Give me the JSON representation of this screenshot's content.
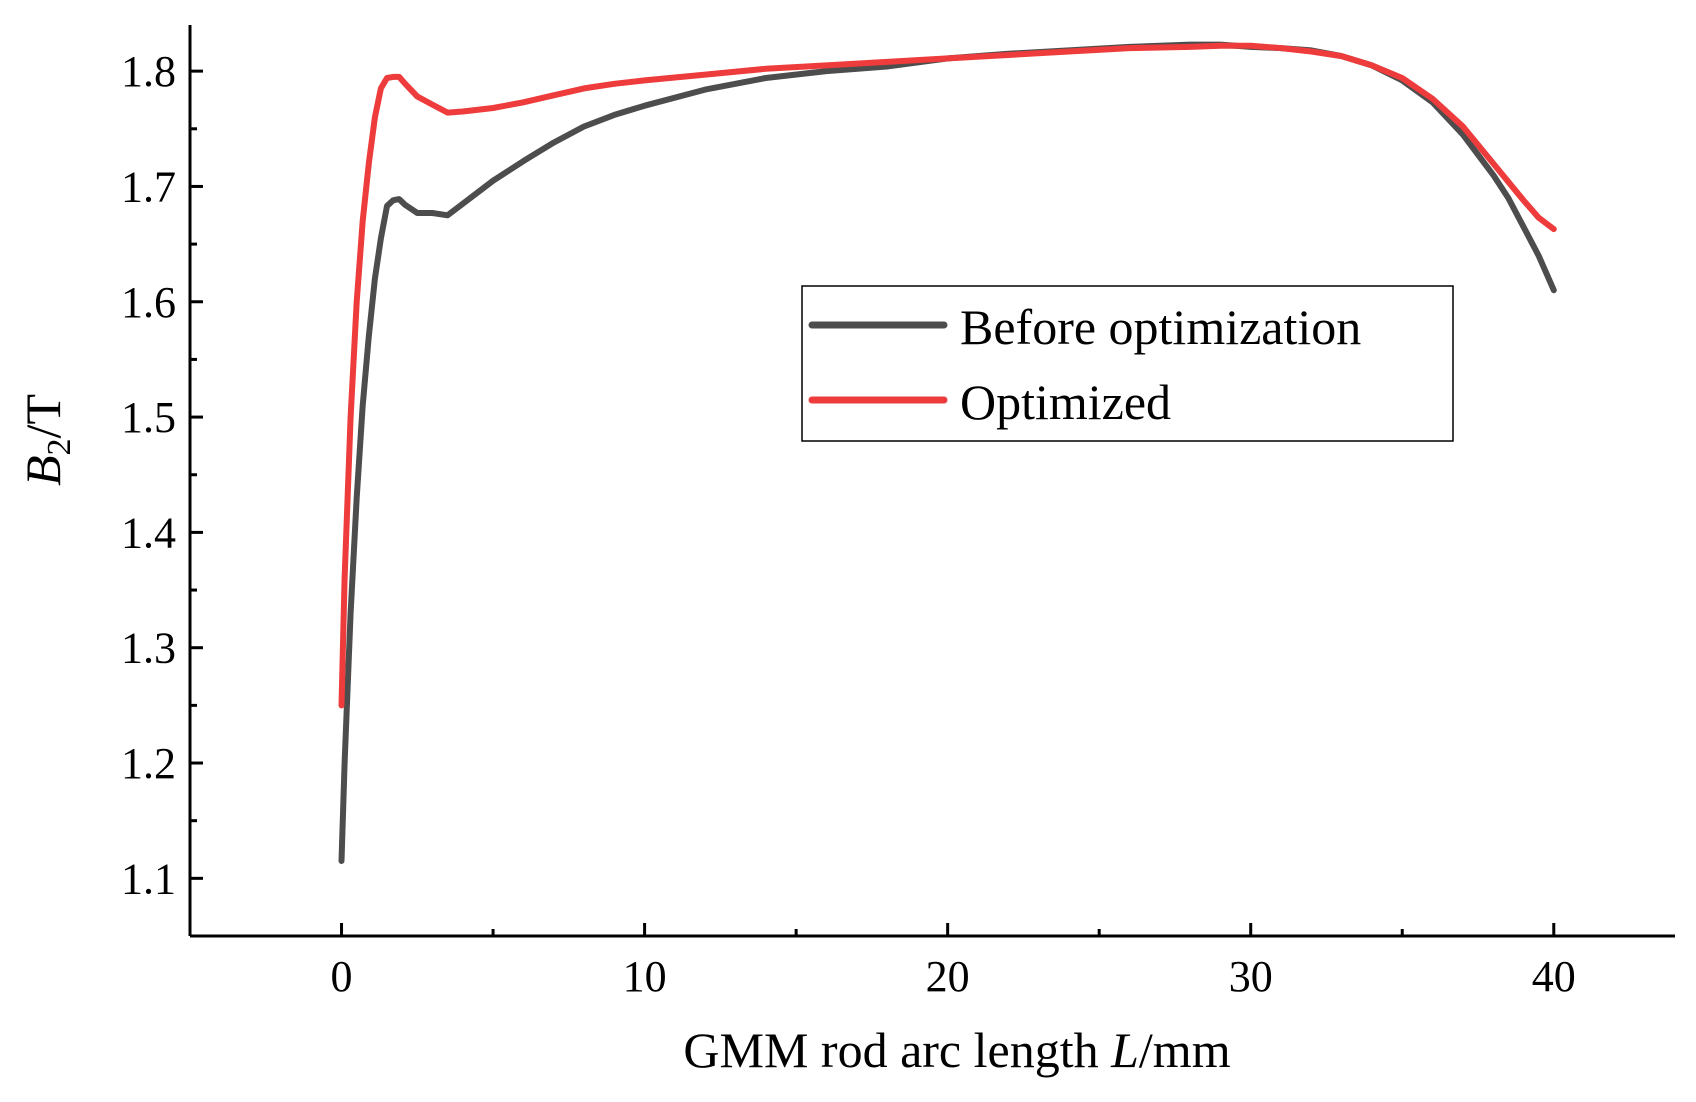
{
  "chart_data": {
    "type": "line",
    "title": "",
    "xlabel": {
      "prefix": "GMM rod arc length ",
      "var": "L",
      "suffix": "/mm"
    },
    "ylabel": {
      "var": "B",
      "sub": "2",
      "suffix": "/T"
    },
    "xlim": [
      -5,
      44
    ],
    "ylim": [
      1.05,
      1.84
    ],
    "xticks": [
      0,
      10,
      20,
      30,
      40
    ],
    "xtick_labels": [
      "0",
      "10",
      "20",
      "30",
      "40"
    ],
    "xminor": [
      -5,
      5,
      15,
      25,
      35
    ],
    "yticks": [
      1.1,
      1.2,
      1.3,
      1.4,
      1.5,
      1.6,
      1.7,
      1.8
    ],
    "ytick_labels": [
      "1.1",
      "1.2",
      "1.3",
      "1.4",
      "1.5",
      "1.6",
      "1.7",
      "1.8"
    ],
    "yminor": [
      1.05,
      1.15,
      1.25,
      1.35,
      1.45,
      1.55,
      1.65,
      1.75
    ],
    "grid": false,
    "legend_position": "center-right",
    "series": [
      {
        "name": "Before optimization",
        "color": "#4d4d4d",
        "x": [
          0,
          0.1,
          0.3,
          0.5,
          0.7,
          0.9,
          1.1,
          1.3,
          1.5,
          1.7,
          1.9,
          2.1,
          2.5,
          3,
          3.5,
          4,
          5,
          6,
          7,
          8,
          9,
          10,
          12,
          14,
          16,
          18,
          20,
          22,
          24,
          26,
          28,
          29,
          30,
          31,
          32,
          33,
          34,
          35,
          36,
          37,
          38,
          38.5,
          39,
          39.5,
          40
        ],
        "values": [
          1.115,
          1.2,
          1.33,
          1.43,
          1.51,
          1.57,
          1.62,
          1.655,
          1.683,
          1.688,
          1.689,
          1.684,
          1.677,
          1.677,
          1.675,
          1.685,
          1.705,
          1.722,
          1.738,
          1.752,
          1.762,
          1.77,
          1.784,
          1.794,
          1.8,
          1.804,
          1.811,
          1.815,
          1.818,
          1.821,
          1.823,
          1.823,
          1.821,
          1.82,
          1.818,
          1.813,
          1.805,
          1.792,
          1.773,
          1.745,
          1.71,
          1.69,
          1.665,
          1.64,
          1.61
        ]
      },
      {
        "name": "Optimized",
        "color": "#ee3b3b",
        "x": [
          0,
          0.1,
          0.3,
          0.5,
          0.7,
          0.9,
          1.1,
          1.3,
          1.5,
          1.7,
          1.9,
          2.1,
          2.5,
          3,
          3.5,
          4,
          5,
          6,
          7,
          8,
          9,
          10,
          12,
          14,
          16,
          18,
          20,
          22,
          24,
          26,
          28,
          29,
          30,
          31,
          32,
          33,
          34,
          35,
          36,
          37,
          38,
          38.5,
          39,
          39.5,
          40
        ],
        "values": [
          1.25,
          1.36,
          1.5,
          1.6,
          1.67,
          1.72,
          1.76,
          1.785,
          1.794,
          1.795,
          1.795,
          1.789,
          1.778,
          1.771,
          1.764,
          1.765,
          1.768,
          1.773,
          1.779,
          1.785,
          1.789,
          1.792,
          1.797,
          1.802,
          1.805,
          1.808,
          1.811,
          1.814,
          1.817,
          1.82,
          1.821,
          1.822,
          1.822,
          1.82,
          1.817,
          1.813,
          1.805,
          1.794,
          1.776,
          1.752,
          1.72,
          1.704,
          1.688,
          1.673,
          1.663
        ]
      }
    ]
  }
}
